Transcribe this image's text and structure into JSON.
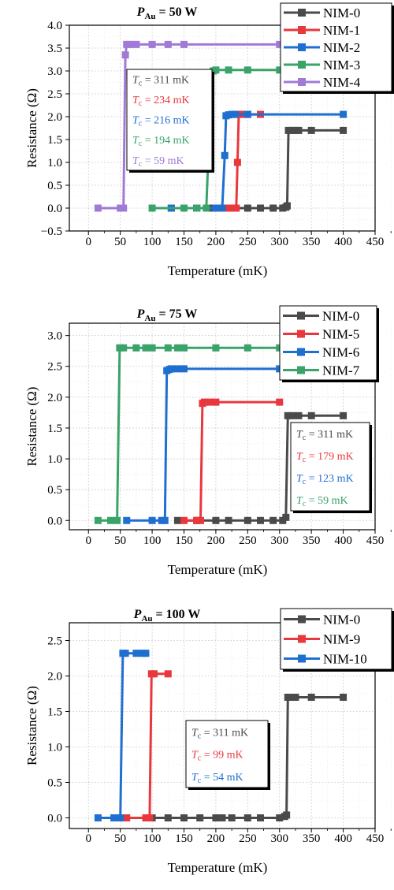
{
  "chart_data": [
    {
      "type": "line",
      "title": {
        "main": "P",
        "sub": "Au",
        "rest": " = 50 W"
      },
      "xlabel": "Temperature (mK)",
      "ylabel": "Resistance (Ω)",
      "xlim": [
        -30,
        450
      ],
      "ylim": [
        -0.5,
        4.0
      ],
      "xticks": [
        "0",
        "50",
        "100",
        "150",
        "200",
        "250",
        "300",
        "350",
        "400",
        "450"
      ],
      "yticks": [
        "−0.5",
        "0.0",
        "0.5",
        "1.0",
        "1.5",
        "2.0",
        "2.5",
        "3.0",
        "3.5",
        "4.0"
      ],
      "grid": true,
      "legend_position": "top-right",
      "series": [
        {
          "name": "NIM-0",
          "color": "#4a4a4a",
          "points": [
            [
              130,
              0
            ],
            [
              150,
              0
            ],
            [
              170,
              0
            ],
            [
              190,
              0
            ],
            [
              210,
              0
            ],
            [
              230,
              0
            ],
            [
              250,
              0
            ],
            [
              270,
              0
            ],
            [
              290,
              0
            ],
            [
              305,
              0
            ],
            [
              310,
              0.02
            ],
            [
              312,
              0.05
            ],
            [
              314,
              1.7
            ],
            [
              320,
              1.7
            ],
            [
              325,
              1.7
            ],
            [
              330,
              1.7
            ],
            [
              350,
              1.7
            ],
            [
              400,
              1.7
            ]
          ]
        },
        {
          "name": "NIM-1",
          "color": "#e8383d",
          "points": [
            [
              150,
              0
            ],
            [
              170,
              0
            ],
            [
              200,
              0
            ],
            [
              220,
              0
            ],
            [
              228,
              0
            ],
            [
              232,
              0
            ],
            [
              234,
              1.0
            ],
            [
              236,
              2.05
            ],
            [
              240,
              2.05
            ],
            [
              250,
              2.05
            ],
            [
              270,
              2.05
            ]
          ]
        },
        {
          "name": "NIM-2",
          "color": "#1f6fd1",
          "points": [
            [
              130,
              0
            ],
            [
              170,
              0
            ],
            [
              200,
              0
            ],
            [
              210,
              0
            ],
            [
              214,
              1.15
            ],
            [
              216,
              2.02
            ],
            [
              220,
              2.04
            ],
            [
              225,
              2.05
            ],
            [
              230,
              2.05
            ],
            [
              250,
              2.05
            ],
            [
              400,
              2.05
            ]
          ]
        },
        {
          "name": "NIM-3",
          "color": "#3aa36a",
          "points": [
            [
              100,
              0
            ],
            [
              150,
              0
            ],
            [
              170,
              0
            ],
            [
              185,
              0
            ],
            [
              192,
              2.5
            ],
            [
              196,
              3.0
            ],
            [
              200,
              3.02
            ],
            [
              220,
              3.02
            ],
            [
              250,
              3.02
            ],
            [
              300,
              3.02
            ]
          ]
        },
        {
          "name": "NIM-4",
          "color": "#a07ad6",
          "points": [
            [
              15,
              0
            ],
            [
              50,
              0
            ],
            [
              55,
              0
            ],
            [
              58,
              3.35
            ],
            [
              60,
              3.58
            ],
            [
              65,
              3.58
            ],
            [
              75,
              3.58
            ],
            [
              100,
              3.58
            ],
            [
              125,
              3.58
            ],
            [
              150,
              3.58
            ],
            [
              300,
              3.58
            ]
          ]
        }
      ],
      "annotations": [
        {
          "label": "T",
          "sub": "c",
          "value": " = 311 mK",
          "color": "#4a4a4a"
        },
        {
          "label": "T",
          "sub": "c",
          "value": " = 234 mK",
          "color": "#e8383d"
        },
        {
          "label": "T",
          "sub": "c",
          "value": " = 216 mK",
          "color": "#1f6fd1"
        },
        {
          "label": "T",
          "sub": "c",
          "value": " = 194 mK",
          "color": "#3aa36a"
        },
        {
          "label": "T",
          "sub": "c",
          "value": " = 59 mK",
          "color": "#a07ad6"
        }
      ]
    },
    {
      "type": "line",
      "title": {
        "main": "P",
        "sub": "Au",
        "rest": " = 75 W"
      },
      "xlabel": "Temperature (mK)",
      "ylabel": "Resistance (Ω)",
      "xlim": [
        -30,
        450
      ],
      "ylim": [
        -0.15,
        3.2
      ],
      "xticks": [
        "0",
        "50",
        "100",
        "150",
        "200",
        "250",
        "300",
        "350",
        "400",
        "450"
      ],
      "yticks": [
        "0.0",
        "0.5",
        "1.0",
        "1.5",
        "2.0",
        "2.5",
        "3.0"
      ],
      "grid": true,
      "legend_position": "top-right",
      "series": [
        {
          "name": "NIM-0",
          "color": "#4a4a4a",
          "points": [
            [
              140,
              0
            ],
            [
              170,
              0
            ],
            [
              200,
              0
            ],
            [
              220,
              0
            ],
            [
              250,
              0
            ],
            [
              270,
              0
            ],
            [
              290,
              0
            ],
            [
              305,
              0
            ],
            [
              310,
              0.05
            ],
            [
              313,
              1.7
            ],
            [
              320,
              1.7
            ],
            [
              330,
              1.7
            ],
            [
              350,
              1.7
            ],
            [
              400,
              1.7
            ]
          ]
        },
        {
          "name": "NIM-5",
          "color": "#e8383d",
          "points": [
            [
              150,
              0
            ],
            [
              170,
              0
            ],
            [
              176,
              0
            ],
            [
              179,
              1.9
            ],
            [
              182,
              1.92
            ],
            [
              190,
              1.92
            ],
            [
              200,
              1.92
            ],
            [
              300,
              1.92
            ]
          ]
        },
        {
          "name": "NIM-6",
          "color": "#1f6fd1",
          "points": [
            [
              60,
              0
            ],
            [
              100,
              0
            ],
            [
              115,
              0
            ],
            [
              120,
              0
            ],
            [
              123,
              2.43
            ],
            [
              127,
              2.45
            ],
            [
              130,
              2.46
            ],
            [
              140,
              2.46
            ],
            [
              150,
              2.46
            ],
            [
              300,
              2.46
            ]
          ]
        },
        {
          "name": "NIM-7",
          "color": "#3aa36a",
          "points": [
            [
              15,
              0
            ],
            [
              35,
              0
            ],
            [
              45,
              0
            ],
            [
              49,
              2.8
            ],
            [
              55,
              2.8
            ],
            [
              75,
              2.8
            ],
            [
              90,
              2.8
            ],
            [
              100,
              2.8
            ],
            [
              125,
              2.8
            ],
            [
              140,
              2.8
            ],
            [
              150,
              2.8
            ],
            [
              200,
              2.8
            ],
            [
              250,
              2.8
            ],
            [
              300,
              2.8
            ]
          ]
        }
      ],
      "annotations": [
        {
          "label": "T",
          "sub": "c",
          "value": " = 311 mK",
          "color": "#4a4a4a"
        },
        {
          "label": "T",
          "sub": "c",
          "value": " = 179 mK",
          "color": "#e8383d"
        },
        {
          "label": "T",
          "sub": "c",
          "value": " = 123 mK",
          "color": "#1f6fd1"
        },
        {
          "label": "T",
          "sub": "c",
          "value": " = 59 mK",
          "color": "#3aa36a"
        }
      ]
    },
    {
      "type": "line",
      "title": {
        "main": "P",
        "sub": "Au",
        "rest": " = 100 W"
      },
      "xlabel": "Temperature (mK)",
      "ylabel": "Resistance (Ω)",
      "xlim": [
        -30,
        450
      ],
      "ylim": [
        -0.15,
        2.75
      ],
      "xticks": [
        "0",
        "50",
        "100",
        "150",
        "200",
        "250",
        "300",
        "350",
        "400",
        "450"
      ],
      "yticks": [
        "0.0",
        "0.5",
        "1.0",
        "1.5",
        "2.0",
        "2.5"
      ],
      "grid": true,
      "legend_position": "top-right",
      "series": [
        {
          "name": "NIM-0",
          "color": "#4a4a4a",
          "points": [
            [
              100,
              0
            ],
            [
              125,
              0
            ],
            [
              150,
              0
            ],
            [
              175,
              0
            ],
            [
              200,
              0
            ],
            [
              210,
              0
            ],
            [
              225,
              0
            ],
            [
              250,
              0
            ],
            [
              270,
              0
            ],
            [
              300,
              0
            ],
            [
              308,
              0.02
            ],
            [
              311,
              0.04
            ],
            [
              313,
              1.7
            ],
            [
              320,
              1.7
            ],
            [
              325,
              1.7
            ],
            [
              350,
              1.7
            ],
            [
              400,
              1.7
            ]
          ]
        },
        {
          "name": "NIM-9",
          "color": "#e8383d",
          "points": [
            [
              60,
              0
            ],
            [
              90,
              0
            ],
            [
              96,
              0
            ],
            [
              99,
              2.03
            ],
            [
              103,
              2.03
            ],
            [
              125,
              2.03
            ]
          ]
        },
        {
          "name": "NIM-10",
          "color": "#1f6fd1",
          "points": [
            [
              15,
              0
            ],
            [
              40,
              0
            ],
            [
              50,
              0
            ],
            [
              54,
              2.32
            ],
            [
              58,
              2.32
            ],
            [
              75,
              2.32
            ],
            [
              85,
              2.32
            ],
            [
              90,
              2.32
            ]
          ]
        }
      ],
      "annotations": [
        {
          "label": "T",
          "sub": "c",
          "value": " = 311 mK",
          "color": "#4a4a4a"
        },
        {
          "label": "T",
          "sub": "c",
          "value": " = 99 mK",
          "color": "#e8383d"
        },
        {
          "label": "T",
          "sub": "c",
          "value": " = 54 mK",
          "color": "#1f6fd1"
        }
      ]
    }
  ]
}
